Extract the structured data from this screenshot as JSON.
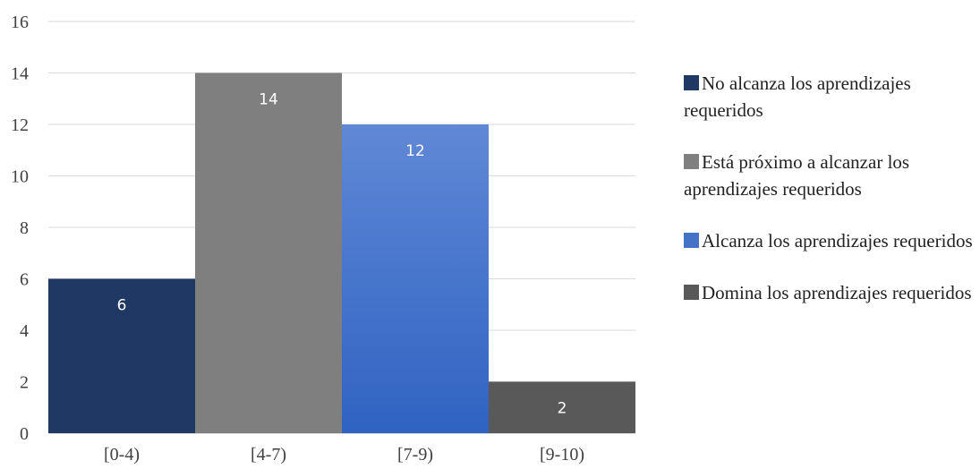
{
  "chart_data": {
    "type": "bar",
    "categories": [
      "[0-4)",
      "[4-7)",
      "[7-9)",
      "[9-10)"
    ],
    "values": [
      6,
      14,
      12,
      2
    ],
    "title": "",
    "xlabel": "",
    "ylabel": "",
    "ylim": [
      0,
      16
    ],
    "y_ticks": [
      "0",
      "2",
      "4",
      "6",
      "8",
      "10",
      "12",
      "14",
      "16"
    ],
    "grid": true,
    "legend_position": "right",
    "colors": [
      "#1f3864",
      "#7f7f7f",
      "#4472c4",
      "#595959"
    ],
    "legend": [
      "No alcanza los aprendizajes requeridos",
      "Está próximo a alcanzar los aprendizajes requeridos",
      "Alcanza los aprendizajes requeridos",
      "Domina los aprendizajes requeridos"
    ]
  }
}
